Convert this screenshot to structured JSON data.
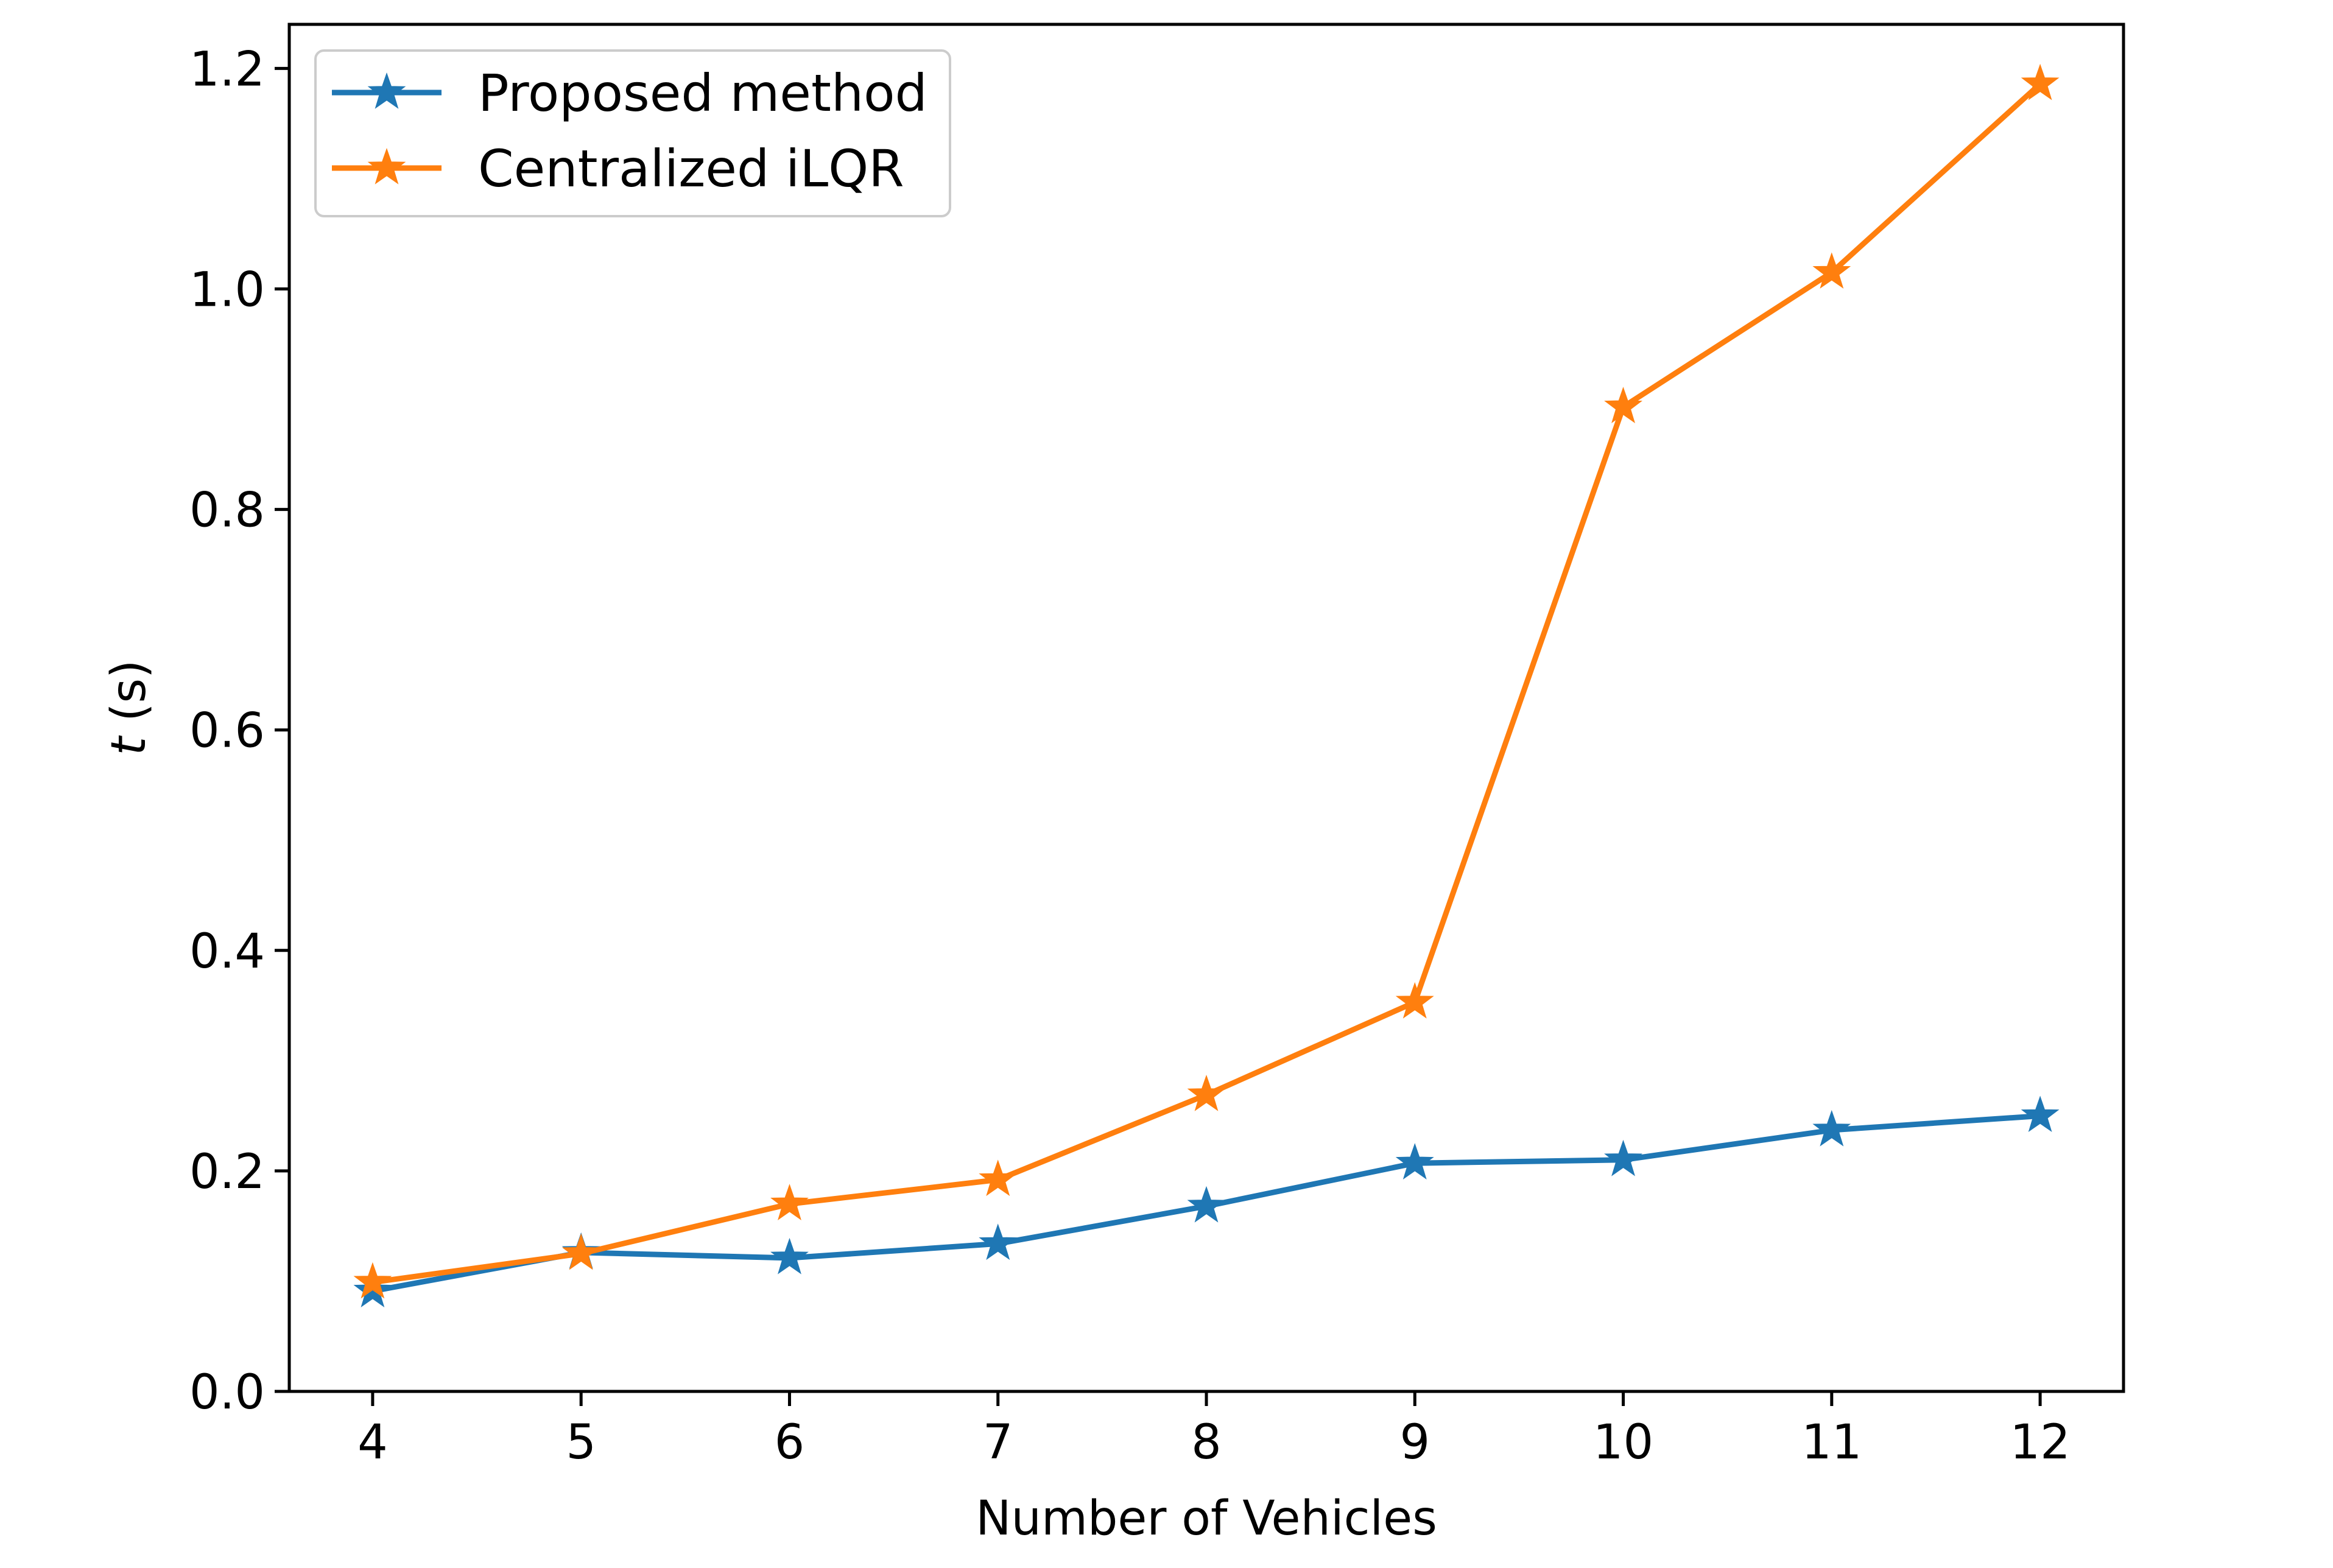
{
  "chart_data": {
    "type": "line",
    "title": "",
    "xlabel": "Number of Vehicles",
    "ylabel_var": "t",
    "ylabel_unit": " (s)",
    "x": [
      4,
      5,
      6,
      7,
      8,
      9,
      10,
      11,
      12
    ],
    "xlim": [
      3.6,
      12.4
    ],
    "ylim": [
      0.0,
      1.24
    ],
    "xticks": [
      "4",
      "5",
      "6",
      "7",
      "8",
      "9",
      "10",
      "11",
      "12"
    ],
    "yticks": [
      "0.0",
      "0.2",
      "0.4",
      "0.6",
      "0.8",
      "1.0",
      "1.2"
    ],
    "grid": false,
    "legend_position": "top-left",
    "marker": "star",
    "series": [
      {
        "name": "Proposed method",
        "color": "#1f77b4",
        "values": [
          0.091,
          0.126,
          0.121,
          0.134,
          0.168,
          0.207,
          0.21,
          0.237,
          0.25
        ]
      },
      {
        "name": "Centralized iLQR",
        "color": "#ff7f0e",
        "values": [
          0.099,
          0.125,
          0.17,
          0.192,
          0.269,
          0.353,
          0.893,
          1.015,
          1.186
        ]
      }
    ]
  }
}
